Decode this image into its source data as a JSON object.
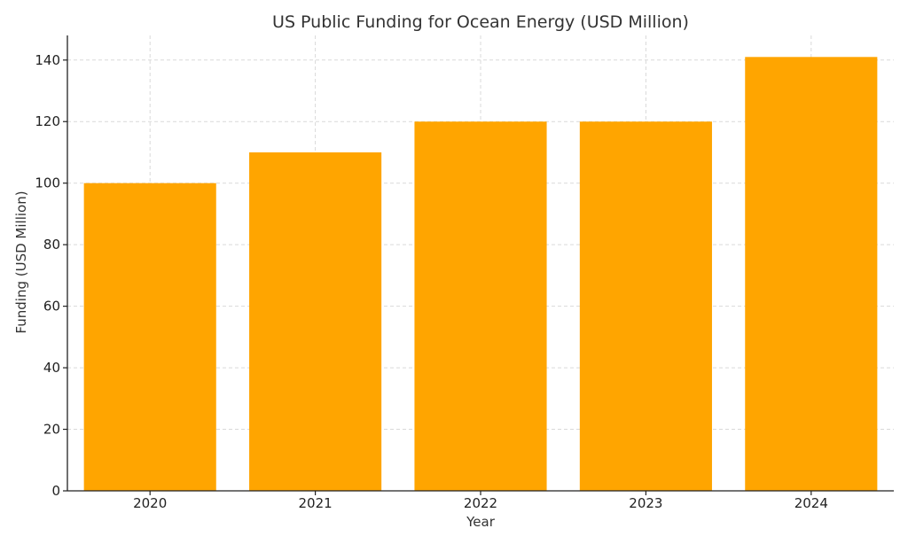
{
  "chart_data": {
    "type": "bar",
    "title": "US Public Funding for Ocean Energy (USD Million)",
    "xlabel": "Year",
    "ylabel": "Funding (USD Million)",
    "categories": [
      "2020",
      "2021",
      "2022",
      "2023",
      "2024"
    ],
    "values": [
      100,
      110,
      120,
      120,
      141
    ],
    "ylim": [
      0,
      148
    ],
    "yticks": [
      0,
      20,
      40,
      60,
      80,
      100,
      120,
      140
    ],
    "grid": true,
    "bar_color": "#FFA500"
  }
}
